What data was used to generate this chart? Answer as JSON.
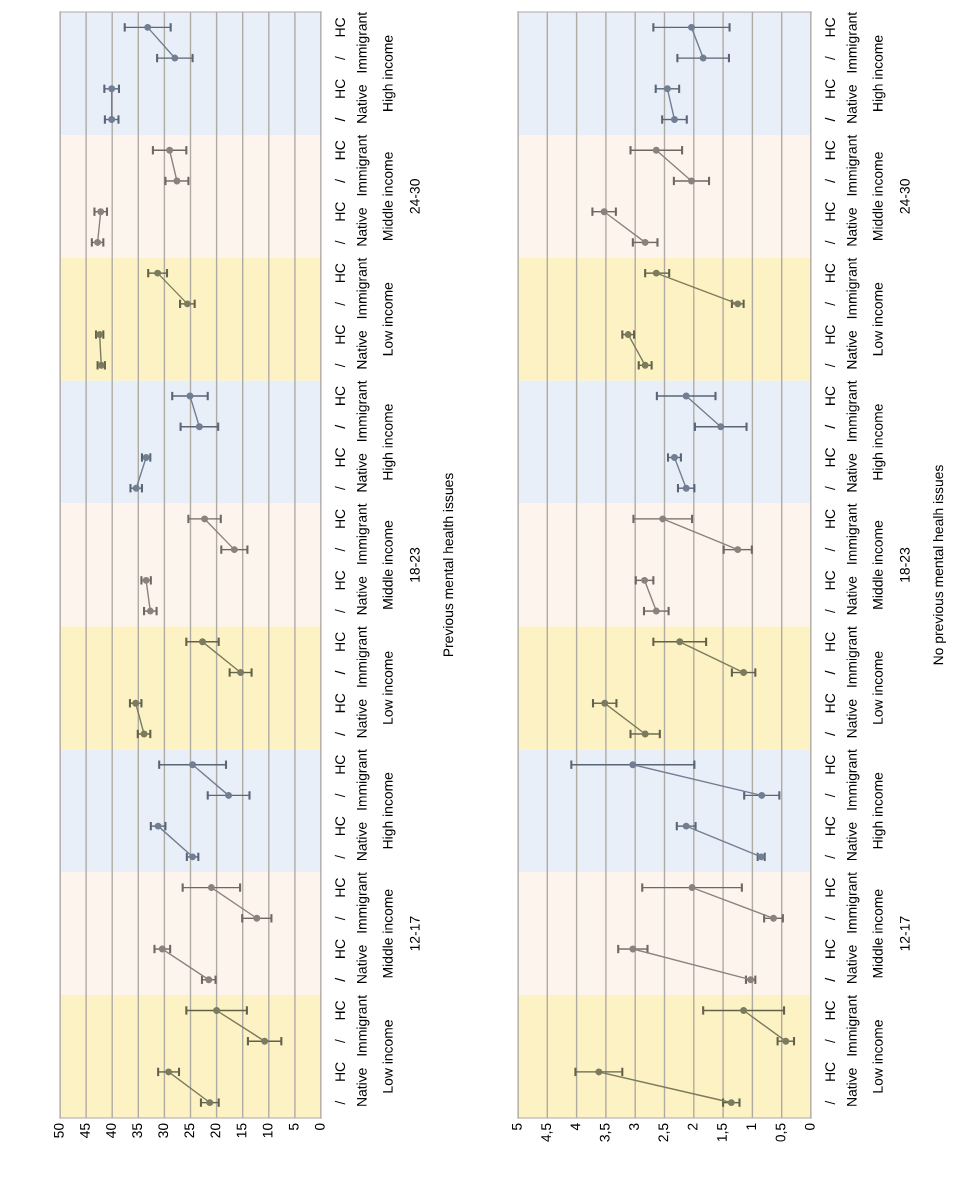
{
  "chart_data": [
    {
      "type": "line",
      "orientation": "horizontal",
      "ylabel": "Previous mental health issues",
      "xlim": [
        50,
        0
      ],
      "xticks": [
        0,
        5,
        10,
        15,
        20,
        25,
        30,
        35,
        40,
        45,
        50
      ],
      "grid": "x",
      "marker": "circle",
      "line_style": "solid",
      "categories": [
        "HC",
        "/",
        "HC",
        "/",
        "HC",
        "/",
        "HC",
        "/",
        "HC",
        "/",
        "HC",
        "/",
        "HC",
        "/",
        "HC",
        "/",
        "HC",
        "/",
        "HC",
        "/",
        "HC",
        "/",
        "HC",
        "/",
        "HC",
        "/",
        "HC",
        "/",
        "HC",
        "/",
        "HC",
        "/",
        "HC",
        "/",
        "HC",
        "/"
      ],
      "annotations": [
        "Immigrant",
        "Native",
        "Immigrant",
        "Native",
        "Immigrant",
        "Native",
        "Immigrant",
        "Native",
        "Immigrant",
        "Native",
        "Immigrant",
        "Native",
        "Immigrant",
        "Native",
        "Immigrant",
        "Native",
        "Immigrant",
        "Native",
        "High income",
        "Middle income",
        "Low income",
        "High income",
        "Middle income",
        "Low income",
        "High income",
        "Middle income",
        "Low income",
        "24-30",
        "18-23",
        "12-17"
      ],
      "series": [
        {
          "color": "#717e93",
          "values": [
            33.2,
            28.0,
            null,
            null,
            null,
            null,
            null,
            null,
            null,
            null,
            null,
            null,
            25.1,
            23.3,
            null,
            null,
            null,
            null,
            null,
            null,
            null,
            null,
            null,
            null,
            24.6,
            17.7,
            null,
            null,
            null,
            null,
            null,
            null,
            null,
            null,
            null,
            null
          ],
          "errors": [
            4.4,
            3.4,
            null,
            null,
            null,
            null,
            null,
            null,
            null,
            null,
            null,
            null,
            3.4,
            3.6,
            null,
            null,
            null,
            null,
            null,
            null,
            null,
            null,
            null,
            null,
            6.4,
            4.0,
            null,
            null,
            null,
            null,
            null,
            null,
            null,
            null,
            null,
            null
          ]
        },
        {
          "color": "#717e93",
          "values": [
            null,
            null,
            40.1,
            40.1,
            null,
            null,
            null,
            null,
            null,
            null,
            null,
            null,
            null,
            null,
            33.5,
            35.4,
            null,
            null,
            null,
            null,
            null,
            null,
            null,
            null,
            null,
            null,
            31.2,
            24.6,
            null,
            null,
            null,
            null,
            null,
            null,
            null,
            null
          ],
          "errors": [
            null,
            null,
            1.4,
            1.3,
            null,
            null,
            null,
            null,
            null,
            null,
            null,
            null,
            null,
            null,
            0.8,
            1.1,
            null,
            null,
            null,
            null,
            null,
            null,
            null,
            null,
            null,
            null,
            1.4,
            1.1,
            null,
            null,
            null,
            null,
            null,
            null,
            null,
            null
          ]
        },
        {
          "color": "#8c817c",
          "values": [
            null,
            null,
            null,
            null,
            29.0,
            27.6,
            null,
            null,
            null,
            null,
            null,
            null,
            null,
            null,
            null,
            null,
            22.3,
            16.6,
            null,
            null,
            null,
            null,
            null,
            null,
            null,
            null,
            null,
            null,
            21.0,
            12.3,
            null,
            null,
            null,
            null,
            null,
            null
          ],
          "errors": [
            null,
            null,
            null,
            null,
            3.2,
            2.2,
            null,
            null,
            null,
            null,
            null,
            null,
            null,
            null,
            null,
            null,
            3.1,
            2.5,
            null,
            null,
            null,
            null,
            null,
            null,
            null,
            null,
            null,
            null,
            5.5,
            2.8,
            null,
            null,
            null,
            null,
            null,
            null
          ]
        },
        {
          "color": "#8c817c",
          "values": [
            null,
            null,
            null,
            null,
            null,
            null,
            42.2,
            42.8,
            null,
            null,
            null,
            null,
            null,
            null,
            null,
            null,
            null,
            null,
            33.5,
            32.7,
            null,
            null,
            null,
            null,
            null,
            null,
            null,
            null,
            null,
            null,
            30.4,
            21.5,
            null,
            null,
            null,
            null
          ],
          "errors": [
            null,
            null,
            null,
            null,
            null,
            null,
            1.2,
            1.1,
            null,
            null,
            null,
            null,
            null,
            null,
            null,
            null,
            null,
            null,
            0.9,
            1.2,
            null,
            null,
            null,
            null,
            null,
            null,
            null,
            null,
            null,
            null,
            1.5,
            1.3,
            null,
            null,
            null,
            null
          ]
        },
        {
          "color": "#7b7b5e",
          "values": [
            null,
            null,
            null,
            null,
            null,
            null,
            null,
            null,
            31.3,
            25.6,
            null,
            null,
            null,
            null,
            null,
            null,
            null,
            null,
            null,
            null,
            22.7,
            15.4,
            null,
            null,
            null,
            null,
            null,
            null,
            null,
            null,
            null,
            null,
            20.0,
            10.8,
            null,
            null
          ],
          "errors": [
            null,
            null,
            null,
            null,
            null,
            null,
            null,
            null,
            1.8,
            1.4,
            null,
            null,
            null,
            null,
            null,
            null,
            null,
            null,
            null,
            null,
            3.1,
            2.1,
            null,
            null,
            null,
            null,
            null,
            null,
            null,
            null,
            null,
            null,
            5.8,
            3.2,
            null,
            null
          ]
        },
        {
          "color": "#7b7b5e",
          "values": [
            null,
            null,
            null,
            null,
            null,
            null,
            null,
            null,
            null,
            null,
            42.4,
            42.1,
            null,
            null,
            null,
            null,
            null,
            null,
            null,
            null,
            null,
            null,
            35.5,
            33.9,
            null,
            null,
            null,
            null,
            null,
            null,
            null,
            null,
            null,
            null,
            29.2,
            21.3
          ],
          "errors": [
            null,
            null,
            null,
            null,
            null,
            null,
            null,
            null,
            null,
            null,
            0.7,
            0.7,
            null,
            null,
            null,
            null,
            null,
            null,
            null,
            null,
            null,
            null,
            1.1,
            1.2,
            null,
            null,
            null,
            null,
            null,
            null,
            null,
            null,
            null,
            null,
            2.0,
            1.7
          ]
        }
      ]
    },
    {
      "type": "line",
      "orientation": "horizontal",
      "ylabel": "No previous mental healh issues",
      "xlim": [
        5,
        0
      ],
      "xticks": [
        0,
        {
          "value": 0.5,
          "label": "0,5"
        },
        1,
        {
          "value": 1.5,
          "label": "1,5"
        },
        2,
        {
          "value": 2.5,
          "label": "2,5"
        },
        3,
        {
          "value": 3.5,
          "label": "3,5"
        },
        4,
        {
          "value": 4.5,
          "label": "4,5"
        },
        5
      ],
      "grid": "x",
      "marker": "circle",
      "line_style": "solid",
      "categories": [
        "HC",
        "/",
        "HC",
        "/",
        "HC",
        "/",
        "HC",
        "/",
        "HC",
        "/",
        "HC",
        "/",
        "HC",
        "/",
        "HC",
        "/",
        "HC",
        "/",
        "HC",
        "/",
        "HC",
        "/",
        "HC",
        "/",
        "HC",
        "/",
        "HC",
        "/",
        "HC",
        "/",
        "HC",
        "/",
        "HC",
        "/",
        "HC",
        "/"
      ],
      "annotations": [
        "Immigrant",
        "Native",
        "Immigrant",
        "Native",
        "Immigrant",
        "Native",
        "Immigrant",
        "Native",
        "Immigrant",
        "Native",
        "Immigrant",
        "Native",
        "Immigrant",
        "Native",
        "Immigrant",
        "Native",
        "Immigrant",
        "Native",
        "High income",
        "Middle income",
        "Low income",
        "High income",
        "Middle income",
        "Low income",
        "High income",
        "Middle income",
        "Low income",
        "24-30",
        "18-23",
        "12-17"
      ],
      "series": [
        {
          "color": "#717e93",
          "values": [
            2.04,
            1.84,
            null,
            null,
            null,
            null,
            null,
            null,
            null,
            null,
            null,
            null,
            2.13,
            1.54,
            null,
            null,
            null,
            null,
            null,
            null,
            null,
            null,
            null,
            null,
            3.04,
            0.84,
            null,
            null,
            null,
            null,
            null,
            null,
            null,
            null,
            null,
            null
          ],
          "errors": [
            0.65,
            0.44,
            null,
            null,
            null,
            null,
            null,
            null,
            null,
            null,
            null,
            null,
            0.5,
            0.44,
            null,
            null,
            null,
            null,
            null,
            null,
            null,
            null,
            null,
            null,
            1.05,
            0.3,
            null,
            null,
            null,
            null,
            null,
            null,
            null,
            null,
            null,
            null
          ]
        },
        {
          "color": "#717e93",
          "values": [
            null,
            null,
            2.45,
            2.33,
            null,
            null,
            null,
            null,
            null,
            null,
            null,
            null,
            null,
            null,
            2.33,
            2.13,
            null,
            null,
            null,
            null,
            null,
            null,
            null,
            null,
            null,
            null,
            2.13,
            0.85,
            null,
            null,
            null,
            null,
            null,
            null,
            null,
            null
          ],
          "errors": [
            null,
            null,
            0.2,
            0.21,
            null,
            null,
            null,
            null,
            null,
            null,
            null,
            null,
            null,
            null,
            0.11,
            0.14,
            null,
            null,
            null,
            null,
            null,
            null,
            null,
            null,
            null,
            null,
            0.16,
            0.06,
            null,
            null,
            null,
            null,
            null,
            null,
            null,
            null
          ]
        },
        {
          "color": "#8c817c",
          "values": [
            null,
            null,
            null,
            null,
            2.64,
            2.04,
            null,
            null,
            null,
            null,
            null,
            null,
            null,
            null,
            null,
            null,
            2.53,
            1.25,
            null,
            null,
            null,
            null,
            null,
            null,
            null,
            null,
            null,
            null,
            2.03,
            0.64,
            null,
            null,
            null,
            null,
            null,
            null
          ],
          "errors": [
            null,
            null,
            null,
            null,
            0.44,
            0.3,
            null,
            null,
            null,
            null,
            null,
            null,
            null,
            null,
            null,
            null,
            0.5,
            0.24,
            null,
            null,
            null,
            null,
            null,
            null,
            null,
            null,
            null,
            null,
            0.85,
            0.16,
            null,
            null,
            null,
            null,
            null,
            null
          ]
        },
        {
          "color": "#8c817c",
          "values": [
            null,
            null,
            null,
            null,
            null,
            null,
            3.53,
            2.83,
            null,
            null,
            null,
            null,
            null,
            null,
            null,
            null,
            null,
            null,
            2.84,
            2.64,
            null,
            null,
            null,
            null,
            null,
            null,
            null,
            null,
            null,
            null,
            3.04,
            1.03,
            null,
            null,
            null,
            null
          ],
          "errors": [
            null,
            null,
            null,
            null,
            null,
            null,
            0.2,
            0.21,
            null,
            null,
            null,
            null,
            null,
            null,
            null,
            null,
            null,
            null,
            0.15,
            0.21,
            null,
            null,
            null,
            null,
            null,
            null,
            null,
            null,
            null,
            null,
            0.25,
            0.08,
            null,
            null,
            null,
            null
          ]
        },
        {
          "color": "#7b7b5e",
          "values": [
            null,
            null,
            null,
            null,
            null,
            null,
            null,
            null,
            2.64,
            1.25,
            null,
            null,
            null,
            null,
            null,
            null,
            null,
            null,
            null,
            null,
            2.24,
            1.15,
            null,
            null,
            null,
            null,
            null,
            null,
            null,
            null,
            null,
            null,
            1.15,
            0.43,
            null,
            null
          ],
          "errors": [
            null,
            null,
            null,
            null,
            null,
            null,
            null,
            null,
            [
              2.42,
              2.83
            ],
            0.1,
            null,
            null,
            null,
            null,
            null,
            null,
            null,
            null,
            null,
            null,
            0.45,
            0.2,
            null,
            null,
            null,
            null,
            null,
            null,
            null,
            null,
            null,
            null,
            0.69,
            0.14,
            null,
            null
          ]
        },
        {
          "color": "#7b7b5e",
          "values": [
            null,
            null,
            null,
            null,
            null,
            null,
            null,
            null,
            null,
            null,
            3.12,
            2.83,
            null,
            null,
            null,
            null,
            null,
            null,
            null,
            null,
            null,
            null,
            3.52,
            2.83,
            null,
            null,
            null,
            null,
            null,
            null,
            null,
            null,
            null,
            null,
            3.62,
            1.36
          ],
          "errors": [
            null,
            null,
            null,
            null,
            null,
            null,
            null,
            null,
            null,
            null,
            0.1,
            0.11,
            null,
            null,
            null,
            null,
            null,
            null,
            null,
            null,
            null,
            null,
            0.2,
            0.25,
            null,
            null,
            null,
            null,
            null,
            null,
            null,
            null,
            null,
            null,
            0.4,
            0.14
          ]
        }
      ]
    }
  ]
}
